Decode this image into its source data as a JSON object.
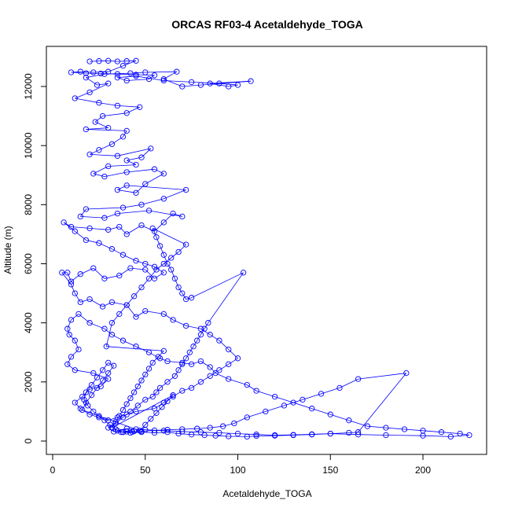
{
  "chart_data": {
    "type": "scatter",
    "title": "ORCAS RF03-4 Acetaldehyde_TOGA",
    "xlabel": "Acetaldehyde_TOGA",
    "ylabel": "Altitude (m)",
    "xlim": [
      0,
      230
    ],
    "ylim": [
      0,
      13000
    ],
    "x_ticks": [
      0,
      50,
      100,
      150,
      200
    ],
    "y_ticks": [
      0,
      2000,
      4000,
      6000,
      8000,
      10000,
      12000
    ],
    "grid": false,
    "legend": "none",
    "series_color": "#0000ff",
    "points": [
      [
        20,
        12850
      ],
      [
        25,
        12860
      ],
      [
        30,
        12870
      ],
      [
        35,
        12850
      ],
      [
        40,
        12860
      ],
      [
        45,
        12870
      ],
      [
        38,
        12700
      ],
      [
        30,
        12500
      ],
      [
        22,
        12480
      ],
      [
        15,
        12500
      ],
      [
        10,
        12480
      ],
      [
        18,
        12450
      ],
      [
        26,
        12440
      ],
      [
        35,
        12420
      ],
      [
        45,
        12400
      ],
      [
        55,
        12380
      ],
      [
        52,
        12250
      ],
      [
        40,
        12200
      ],
      [
        35,
        12300
      ],
      [
        45,
        12350
      ],
      [
        60,
        12200
      ],
      [
        75,
        12150
      ],
      [
        90,
        12100
      ],
      [
        100,
        12050
      ],
      [
        95,
        12000
      ],
      [
        85,
        12100
      ],
      [
        107,
        12180
      ],
      [
        80,
        12050
      ],
      [
        70,
        12000
      ],
      [
        60,
        12250
      ],
      [
        67,
        12500
      ],
      [
        50,
        12480
      ],
      [
        42,
        12450
      ],
      [
        28,
        12420
      ],
      [
        18,
        12300
      ],
      [
        24,
        12050
      ],
      [
        30,
        12100
      ],
      [
        20,
        11800
      ],
      [
        12,
        11600
      ],
      [
        25,
        11450
      ],
      [
        35,
        11350
      ],
      [
        47,
        11300
      ],
      [
        40,
        11100
      ],
      [
        27,
        11000
      ],
      [
        23,
        10800
      ],
      [
        30,
        10600
      ],
      [
        18,
        10550
      ],
      [
        40,
        10500
      ],
      [
        38,
        10300
      ],
      [
        32,
        10050
      ],
      [
        25,
        9850
      ],
      [
        20,
        9700
      ],
      [
        35,
        9650
      ],
      [
        53,
        9900
      ],
      [
        48,
        9600
      ],
      [
        40,
        9500
      ],
      [
        45,
        9350
      ],
      [
        30,
        9300
      ],
      [
        22,
        9050
      ],
      [
        28,
        8950
      ],
      [
        40,
        9100
      ],
      [
        55,
        9200
      ],
      [
        60,
        9050
      ],
      [
        50,
        8700
      ],
      [
        45,
        8400
      ],
      [
        35,
        8500
      ],
      [
        40,
        8650
      ],
      [
        72,
        8500
      ],
      [
        60,
        8200
      ],
      [
        48,
        8000
      ],
      [
        38,
        7900
      ],
      [
        18,
        7850
      ],
      [
        15,
        7600
      ],
      [
        28,
        7550
      ],
      [
        35,
        7700
      ],
      [
        52,
        7800
      ],
      [
        70,
        7600
      ],
      [
        65,
        7700
      ],
      [
        60,
        7400
      ],
      [
        55,
        7100
      ],
      [
        48,
        7300
      ],
      [
        40,
        7000
      ],
      [
        36,
        7250
      ],
      [
        30,
        7150
      ],
      [
        20,
        7200
      ],
      [
        10,
        7250
      ],
      [
        6,
        7400
      ],
      [
        12,
        7100
      ],
      [
        18,
        6800
      ],
      [
        25,
        6700
      ],
      [
        32,
        6500
      ],
      [
        38,
        6300
      ],
      [
        45,
        6100
      ],
      [
        50,
        6000
      ],
      [
        55,
        5900
      ],
      [
        60,
        5700
      ],
      [
        55,
        5500
      ],
      [
        50,
        5800
      ],
      [
        42,
        5850
      ],
      [
        36,
        5600
      ],
      [
        28,
        5500
      ],
      [
        22,
        5850
      ],
      [
        15,
        5650
      ],
      [
        10,
        5400
      ],
      [
        8,
        5700
      ],
      [
        5,
        5700
      ],
      [
        10,
        5300
      ],
      [
        12,
        5000
      ],
      [
        15,
        4700
      ],
      [
        20,
        4800
      ],
      [
        27,
        4550
      ],
      [
        32,
        4700
      ],
      [
        40,
        4600
      ],
      [
        45,
        4200
      ],
      [
        50,
        4400
      ],
      [
        60,
        4300
      ],
      [
        65,
        4100
      ],
      [
        72,
        3900
      ],
      [
        80,
        3800
      ],
      [
        85,
        3600
      ],
      [
        90,
        3400
      ],
      [
        95,
        3100
      ],
      [
        100,
        2800
      ],
      [
        95,
        2600
      ],
      [
        90,
        2400
      ],
      [
        85,
        2200
      ],
      [
        80,
        2000
      ],
      [
        75,
        1800
      ],
      [
        70,
        1700
      ],
      [
        65,
        1500
      ],
      [
        60,
        1300
      ],
      [
        55,
        1100
      ],
      [
        45,
        1000
      ],
      [
        40,
        900
      ],
      [
        35,
        800
      ],
      [
        30,
        700
      ],
      [
        25,
        800
      ],
      [
        20,
        900
      ],
      [
        15,
        1100
      ],
      [
        12,
        1300
      ],
      [
        16,
        1500
      ],
      [
        20,
        1750
      ],
      [
        26,
        1850
      ],
      [
        30,
        2100
      ],
      [
        22,
        2300
      ],
      [
        12,
        2400
      ],
      [
        8,
        2600
      ],
      [
        10,
        2850
      ],
      [
        14,
        3100
      ],
      [
        12,
        3400
      ],
      [
        9,
        3600
      ],
      [
        8,
        3800
      ],
      [
        10,
        4100
      ],
      [
        14,
        4300
      ],
      [
        20,
        4000
      ],
      [
        28,
        3800
      ],
      [
        32,
        3600
      ],
      [
        38,
        3400
      ],
      [
        45,
        3200
      ],
      [
        52,
        3000
      ],
      [
        58,
        2800
      ],
      [
        62,
        2700
      ],
      [
        70,
        2650
      ],
      [
        75,
        2600
      ],
      [
        80,
        2700
      ],
      [
        85,
        2500
      ],
      [
        88,
        2300
      ],
      [
        95,
        2100
      ],
      [
        105,
        1900
      ],
      [
        110,
        1700
      ],
      [
        120,
        1500
      ],
      [
        130,
        1300
      ],
      [
        140,
        1100
      ],
      [
        150,
        900
      ],
      [
        160,
        700
      ],
      [
        170,
        500
      ],
      [
        180,
        450
      ],
      [
        190,
        400
      ],
      [
        200,
        350
      ],
      [
        210,
        300
      ],
      [
        220,
        250
      ],
      [
        225,
        200
      ],
      [
        215,
        150
      ],
      [
        200,
        180
      ],
      [
        180,
        200
      ],
      [
        165,
        220
      ],
      [
        150,
        250
      ],
      [
        140,
        230
      ],
      [
        130,
        210
      ],
      [
        120,
        200
      ],
      [
        110,
        220
      ],
      [
        100,
        250
      ],
      [
        90,
        280
      ],
      [
        80,
        300
      ],
      [
        70,
        320
      ],
      [
        60,
        350
      ],
      [
        50,
        380
      ],
      [
        45,
        400
      ],
      [
        40,
        420
      ],
      [
        35,
        350
      ],
      [
        38,
        300
      ],
      [
        42,
        280
      ],
      [
        48,
        300
      ],
      [
        55,
        280
      ],
      [
        62,
        300
      ],
      [
        68,
        250
      ],
      [
        75,
        220
      ],
      [
        82,
        200
      ],
      [
        88,
        180
      ],
      [
        95,
        160
      ],
      [
        105,
        150
      ],
      [
        110,
        170
      ],
      [
        120,
        180
      ],
      [
        130,
        200
      ],
      [
        140,
        220
      ],
      [
        150,
        250
      ],
      [
        160,
        280
      ],
      [
        165,
        300
      ],
      [
        191,
        2300
      ],
      [
        165,
        2100
      ],
      [
        155,
        1800
      ],
      [
        145,
        1600
      ],
      [
        135,
        1400
      ],
      [
        125,
        1200
      ],
      [
        115,
        1000
      ],
      [
        105,
        800
      ],
      [
        98,
        600
      ],
      [
        92,
        500
      ],
      [
        85,
        450
      ],
      [
        78,
        420
      ],
      [
        70,
        400
      ],
      [
        62,
        380
      ],
      [
        55,
        360
      ],
      [
        48,
        330
      ],
      [
        43,
        310
      ],
      [
        38,
        300
      ],
      [
        33,
        320
      ],
      [
        30,
        450
      ],
      [
        34,
        600
      ],
      [
        38,
        800
      ],
      [
        42,
        1000
      ],
      [
        46,
        1200
      ],
      [
        50,
        1400
      ],
      [
        54,
        1500
      ],
      [
        56,
        1650
      ],
      [
        58,
        1800
      ],
      [
        62,
        2000
      ],
      [
        66,
        2200
      ],
      [
        68,
        2400
      ],
      [
        70,
        2600
      ],
      [
        72,
        2800
      ],
      [
        74,
        3000
      ],
      [
        76,
        3200
      ],
      [
        78,
        3400
      ],
      [
        80,
        3600
      ],
      [
        82,
        3800
      ],
      [
        84,
        4000
      ],
      [
        103,
        5700
      ],
      [
        75,
        4850
      ],
      [
        72,
        4800
      ],
      [
        70,
        5000
      ],
      [
        68,
        5200
      ],
      [
        66,
        5500
      ],
      [
        64,
        5800
      ],
      [
        62,
        6000
      ],
      [
        60,
        6300
      ],
      [
        58,
        6600
      ],
      [
        56,
        6900
      ],
      [
        54,
        7200
      ],
      [
        72,
        6650
      ],
      [
        68,
        6400
      ],
      [
        64,
        6200
      ],
      [
        60,
        6000
      ],
      [
        56,
        5800
      ],
      [
        52,
        5500
      ],
      [
        48,
        5200
      ],
      [
        44,
        4900
      ],
      [
        40,
        4600
      ],
      [
        36,
        4300
      ],
      [
        32,
        4000
      ],
      [
        29,
        3200
      ],
      [
        60,
        3050
      ],
      [
        57,
        2850
      ],
      [
        54,
        2650
      ],
      [
        52,
        2450
      ],
      [
        50,
        2250
      ],
      [
        48,
        2050
      ],
      [
        46,
        1850
      ],
      [
        44,
        1650
      ],
      [
        42,
        1450
      ],
      [
        40,
        1250
      ],
      [
        38,
        1050
      ],
      [
        36,
        850
      ],
      [
        34,
        650
      ],
      [
        32,
        450
      ],
      [
        65,
        1550
      ],
      [
        62,
        1350
      ],
      [
        59,
        1150
      ],
      [
        56,
        950
      ],
      [
        53,
        750
      ],
      [
        50,
        550
      ],
      [
        47,
        350
      ],
      [
        16,
        1050
      ],
      [
        18,
        1300
      ],
      [
        21,
        1550
      ],
      [
        24,
        1800
      ],
      [
        27,
        2050
      ],
      [
        30,
        2300
      ],
      [
        33,
        2550
      ],
      [
        30,
        2650
      ],
      [
        27,
        2400
      ],
      [
        24,
        2150
      ],
      [
        21,
        1900
      ],
      [
        18,
        1650
      ],
      [
        17,
        1400
      ],
      [
        19,
        1200
      ],
      [
        22,
        1000
      ],
      [
        25,
        850
      ],
      [
        28,
        700
      ],
      [
        31,
        550
      ],
      [
        34,
        400
      ],
      [
        37,
        300
      ],
      [
        40,
        320
      ],
      [
        44,
        330
      ]
    ]
  }
}
